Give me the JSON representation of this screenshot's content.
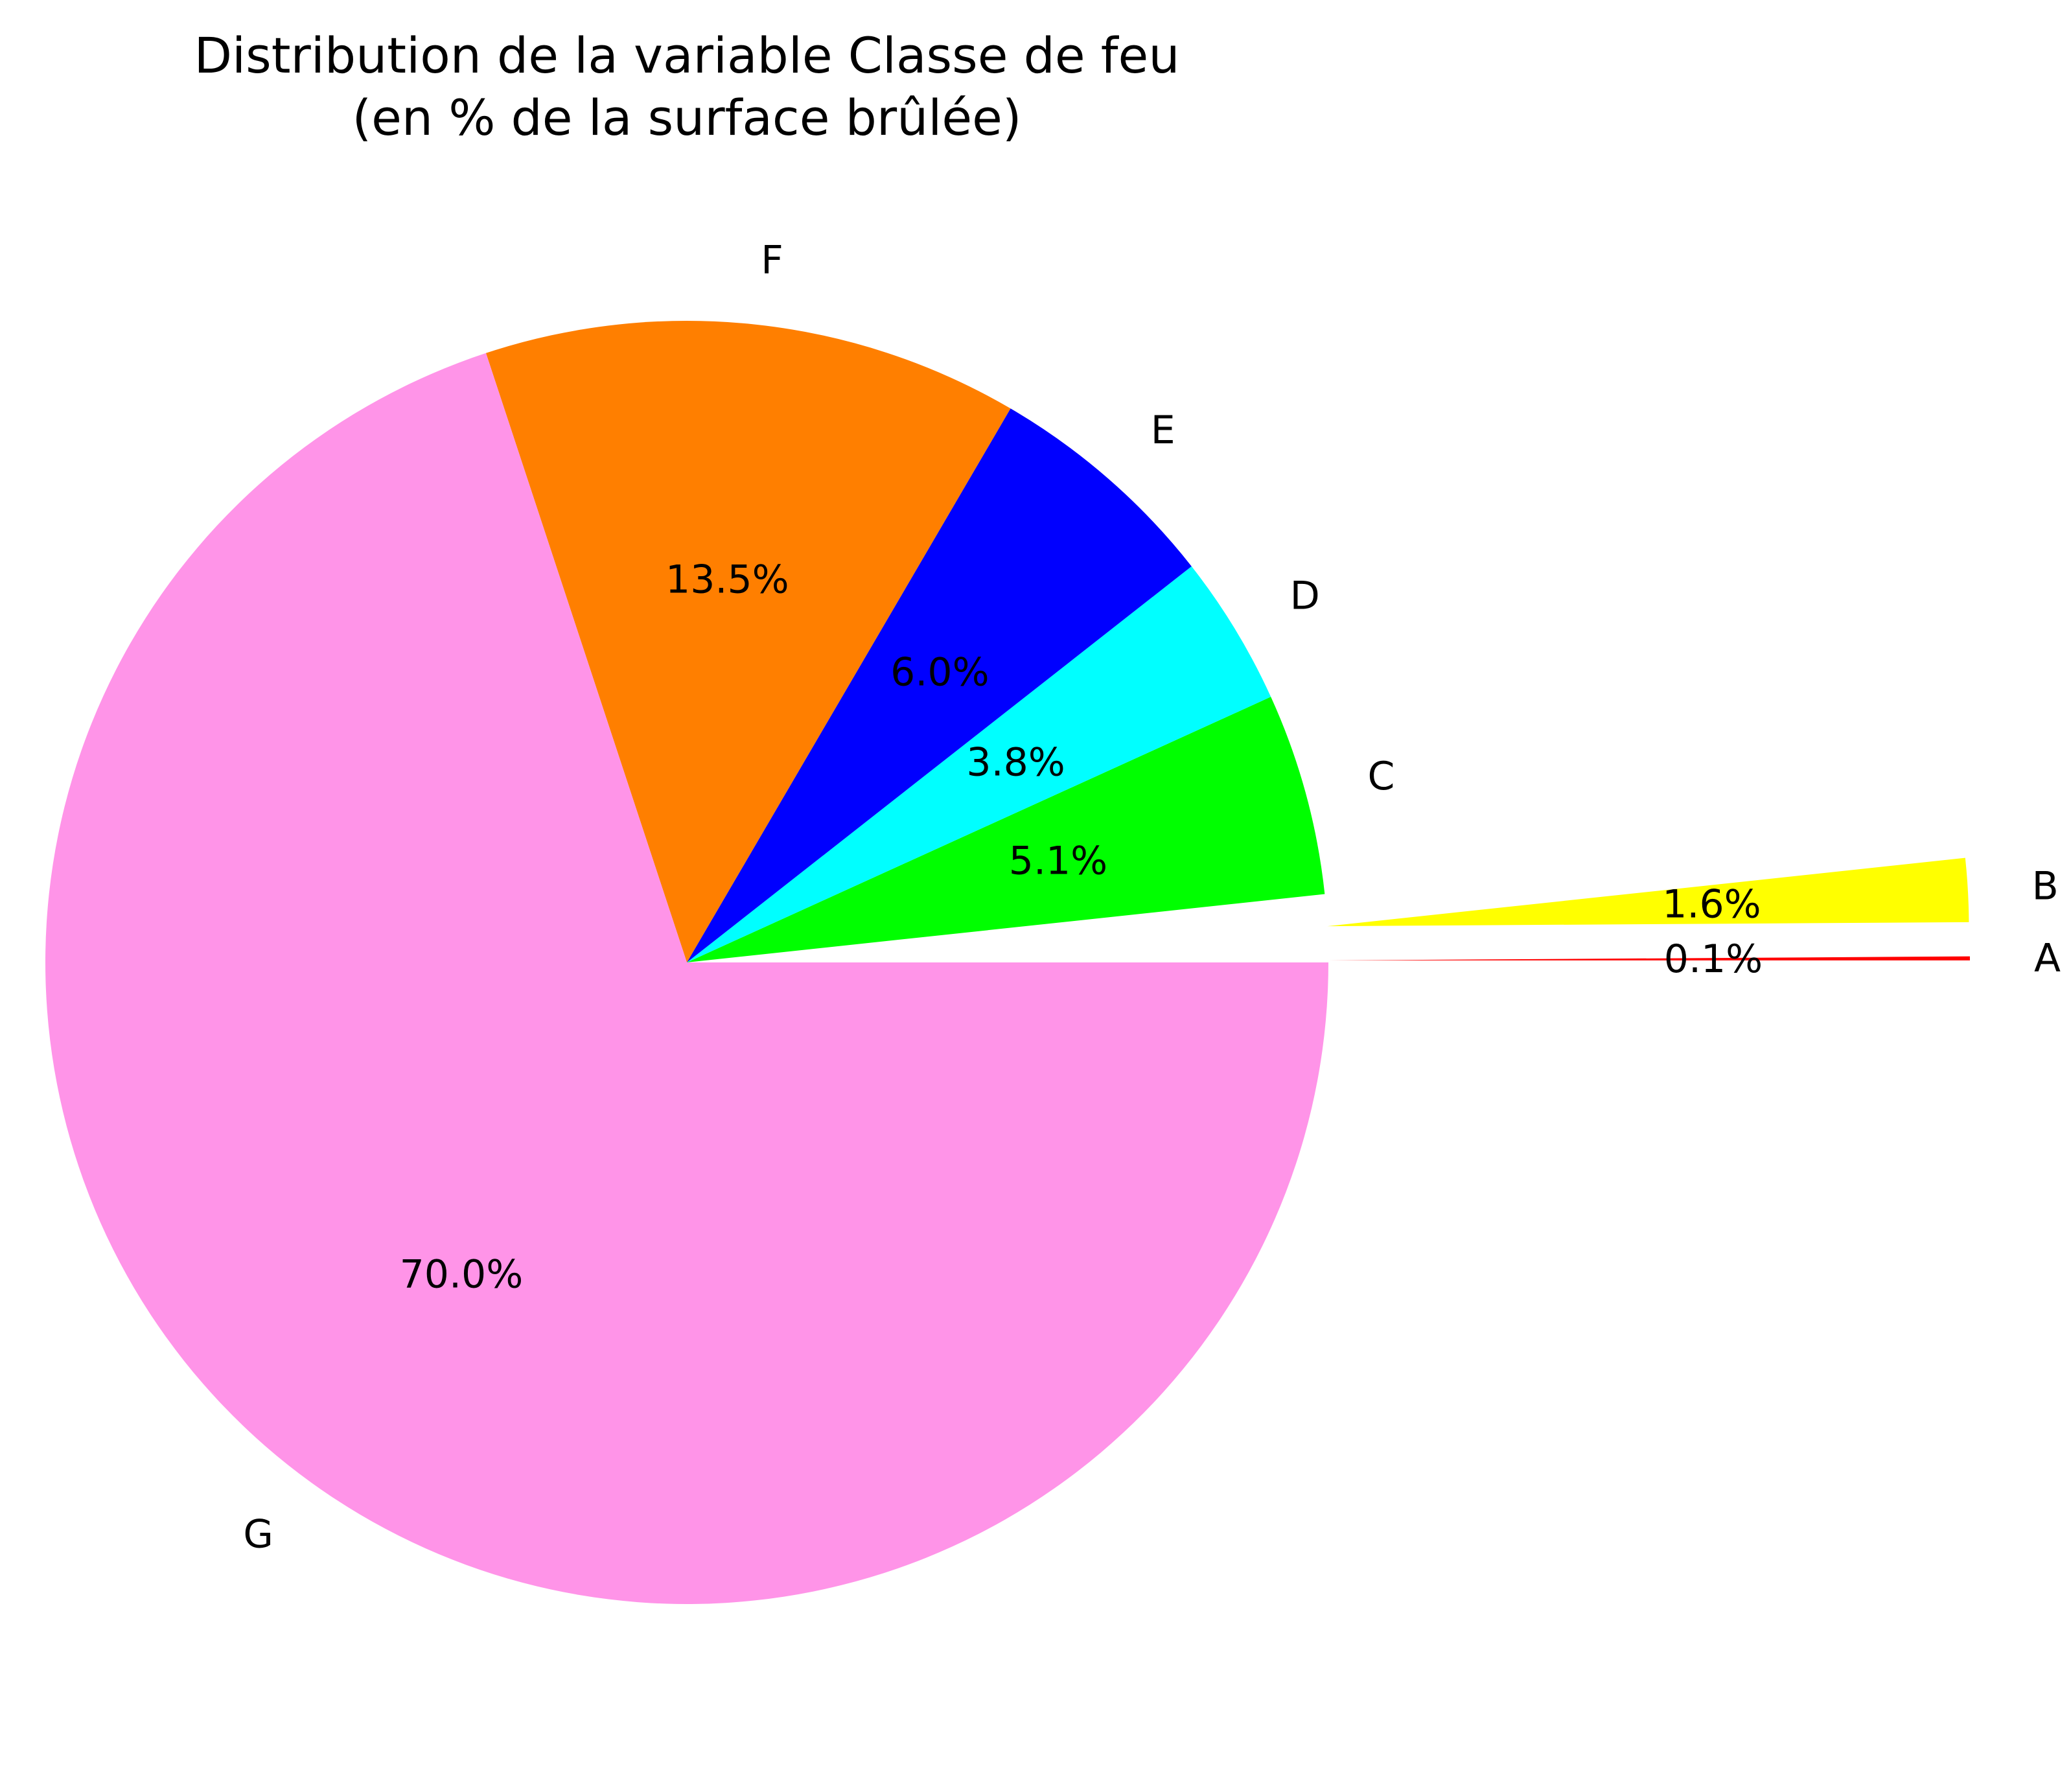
{
  "chart_data": {
    "type": "pie",
    "title": "Distribution de la variable Classe de feu",
    "subtitle": "(en % de la surface brûlée)",
    "slices": [
      {
        "label": "A",
        "value": 0.1,
        "display": "0.1%",
        "color": "#ff0000",
        "explode": 1.0
      },
      {
        "label": "B",
        "value": 1.6,
        "display": "1.6%",
        "color": "#ffff00",
        "explode": 1.0
      },
      {
        "label": "C",
        "value": 5.1,
        "display": "5.1%",
        "color": "#00ff00",
        "explode": 0.0
      },
      {
        "label": "D",
        "value": 3.8,
        "display": "3.8%",
        "color": "#00ffff",
        "explode": 0.0
      },
      {
        "label": "E",
        "value": 6.0,
        "display": "6.0%",
        "color": "#0000ff",
        "explode": 0.0
      },
      {
        "label": "F",
        "value": 13.5,
        "display": "13.5%",
        "color": "#ff7f00",
        "explode": 0.0
      },
      {
        "label": "G",
        "value": 70.0,
        "display": "70.0%",
        "color": "#ff94e8",
        "explode": 0.0
      }
    ]
  }
}
